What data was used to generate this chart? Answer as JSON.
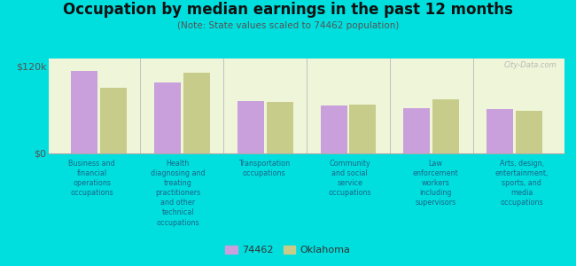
{
  "title": "Occupation by median earnings in the past 12 months",
  "subtitle": "(Note: State values scaled to 74462 population)",
  "categories": [
    "Business and\nfinancial\noperations\noccupations",
    "Health\ndiagnosing and\ntreating\npractitioners\nand other\ntechnical\noccupations",
    "Transportation\noccupations",
    "Community\nand social\nservice\noccupations",
    "Law\nenforcement\nworkers\nincluding\nsupervisors",
    "Arts, design,\nentertainment,\nsports, and\nmedia\noccupations"
  ],
  "values_74462": [
    113000,
    97000,
    72000,
    65000,
    62000,
    60000
  ],
  "values_oklahoma": [
    90000,
    110000,
    70000,
    66000,
    74000,
    58000
  ],
  "color_74462": "#c9a0dc",
  "color_oklahoma": "#c8cc8a",
  "ylim": [
    0,
    130000
  ],
  "ytick_values": [
    0,
    120000
  ],
  "ytick_labels": [
    "$0",
    "$120k"
  ],
  "plot_bg": "#eef5d8",
  "outer_bg": "#00dede",
  "legend_label_74462": "74462",
  "legend_label_oklahoma": "Oklahoma",
  "watermark": "City-Data.com",
  "title_fontsize": 12,
  "subtitle_fontsize": 7.5,
  "label_fontsize": 5.8,
  "bar_width": 0.32,
  "bar_gap": 0.03
}
